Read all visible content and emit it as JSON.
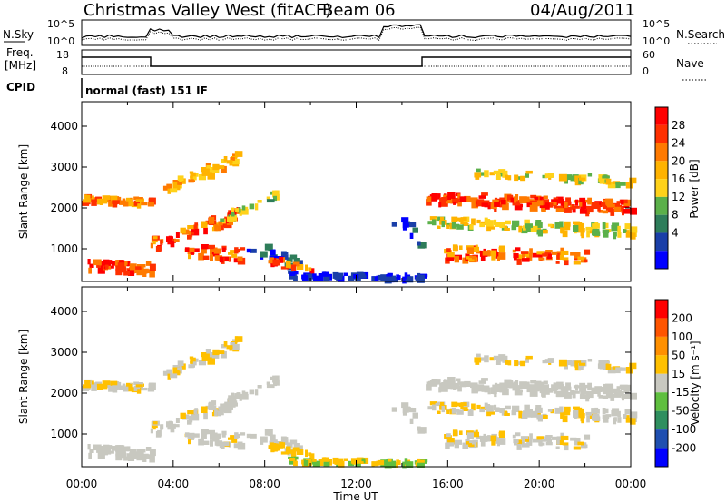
{
  "header": {
    "title": "Christmas Valley West (fitACF)",
    "beam": "Beam 06",
    "date": "04/Aug/2011"
  },
  "top_panels": {
    "nsky_label": "N.Sky",
    "nsky_ticks": [
      "10^5",
      "10^0"
    ],
    "nsearch_label": "N.Search",
    "nsearch_ticks": [
      "10^5",
      "10^0"
    ],
    "freq_label_1": "Freq.",
    "freq_label_2": "[MHz]",
    "freq_ticks": [
      "18",
      "8"
    ],
    "nave_label": "Nave",
    "nave_ticks": [
      "60",
      "0"
    ],
    "cpid_label": "CPID",
    "cpid_text": "normal (fast) 151 IF"
  },
  "colors": {
    "power_scale": [
      "#0000ff",
      "#1a3fa8",
      "#2e7d5a",
      "#5bb04a",
      "#ffd21a",
      "#ffb300",
      "#ff7a00",
      "#ff3000",
      "#ff0000"
    ],
    "velocity_scale": [
      "#0000ff",
      "#1f4fb0",
      "#2f8f5f",
      "#5fbf3f",
      "#c8c8c0",
      "#ffc000",
      "#ff9000",
      "#ff5500",
      "#ff0000"
    ]
  },
  "chart_data": [
    {
      "type": "heatmap",
      "panel": "power",
      "ylabel": "Slant Range [km]",
      "yticks": [
        "1000",
        "2000",
        "3000",
        "4000"
      ],
      "ylim": [
        200,
        4600
      ],
      "colorbar_label": "Power [dB]",
      "colorbar_ticks": [
        "4",
        "8",
        "12",
        "16",
        "20",
        "24",
        "28"
      ]
    },
    {
      "type": "heatmap",
      "panel": "velocity",
      "ylabel": "Slant Range [km]",
      "yticks": [
        "1000",
        "2000",
        "3000",
        "4000"
      ],
      "ylim": [
        200,
        4600
      ],
      "colorbar_label": "Velocity [m s⁻¹]",
      "colorbar_ticks": [
        "200",
        "100",
        "50",
        "15",
        "-15",
        "-50",
        "-100",
        "-200"
      ]
    }
  ],
  "time_axis": {
    "xlabel": "Time UT",
    "xticks": [
      "00:00",
      "04:00",
      "08:00",
      "12:00",
      "16:00",
      "20:00",
      "00:00"
    ],
    "xlim": [
      0,
      24
    ]
  }
}
